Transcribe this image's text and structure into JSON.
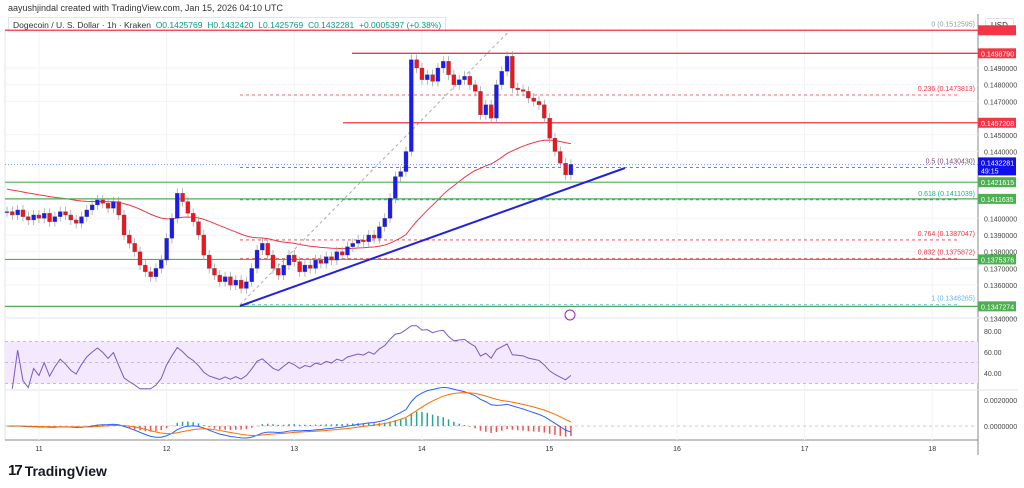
{
  "header": {
    "credit": "aayushjindal created with TradingView.com, Jan 15, 2026 04:10 UTC"
  },
  "legend": {
    "symbol": "Dogecoin / U. S. Dollar · 1h · Kraken",
    "open": "O0.1425769",
    "high": "H0.1432420",
    "low": "L0.1425769",
    "close": "C0.1432281",
    "change": "+0.0005397 (+0.38%)"
  },
  "currency": "USD",
  "colors": {
    "up": "#1b1bf0",
    "down": "#f0141e",
    "ma": "#f23645",
    "support": "#4caf50",
    "resistance": "#f23645",
    "trendline": "#2222dd",
    "rsi": "#7e57c2",
    "macd": "#2962ff",
    "signal": "#ff6d00"
  },
  "price_axis": {
    "ticks": [
      "0.1490000",
      "0.1480000",
      "0.1470000",
      "0.1450000",
      "0.1440000",
      "0.1400000",
      "0.1390000",
      "0.1380000",
      "0.1370000",
      "0.1360000",
      "0.1340000"
    ]
  },
  "price_labels": {
    "resistance": [
      "0.1498790",
      "0.1457208"
    ],
    "support": [
      "0.1421615",
      "0.1411635",
      "0.1375376",
      "0.1347274"
    ],
    "current": "0.1432281",
    "countdown": "49:15"
  },
  "fib": [
    {
      "label": "0 (0.1512595)",
      "v": 0.1512595,
      "c": "#9598a1"
    },
    {
      "label": "0.236 (0.1473813)",
      "v": 0.1473813,
      "c": "#f23645"
    },
    {
      "label": "0.5 (0.1430430)",
      "v": 0.143043,
      "c": "#7b4b6b"
    },
    {
      "label": "0.618 (0.1411039)",
      "v": 0.1411039,
      "c": "#22ab94"
    },
    {
      "label": "0.764 (0.1387047)",
      "v": 0.1387047,
      "c": "#f23645"
    },
    {
      "label": "0.832 (0.1375872)",
      "v": 0.1375872,
      "c": "#f23645"
    },
    {
      "label": "1 (0.1348265)",
      "v": 0.1348265,
      "c": "#5eb5e8"
    }
  ],
  "rsi_axis": {
    "ticks": [
      "80.00",
      "60.00",
      "40.00"
    ]
  },
  "macd_axis": {
    "ticks": [
      "0.0020000",
      "0.0000000"
    ]
  },
  "time_axis": {
    "ticks": [
      "11",
      "12",
      "13",
      "14",
      "15",
      "16",
      "17",
      "18"
    ]
  },
  "chart_data": {
    "type": "candlestick",
    "interval": "1h",
    "start": "Jan 10 18:00",
    "closes": [
      0.1404,
      0.1402,
      0.1405,
      0.1401,
      0.1399,
      0.1402,
      0.14,
      0.1403,
      0.1398,
      0.1401,
      0.1404,
      0.1402,
      0.1399,
      0.1397,
      0.1401,
      0.1405,
      0.1408,
      0.1411,
      0.1409,
      0.1406,
      0.141,
      0.1402,
      0.139,
      0.1385,
      0.138,
      0.1372,
      0.1368,
      0.1365,
      0.137,
      0.1375,
      0.1388,
      0.14,
      0.1415,
      0.141,
      0.1403,
      0.1398,
      0.139,
      0.1378,
      0.137,
      0.1366,
      0.1362,
      0.1365,
      0.136,
      0.1363,
      0.1358,
      0.1362,
      0.137,
      0.1381,
      0.1385,
      0.1378,
      0.137,
      0.1366,
      0.1372,
      0.1378,
      0.1374,
      0.1368,
      0.1372,
      0.137,
      0.1375,
      0.1373,
      0.1377,
      0.1375,
      0.138,
      0.1378,
      0.1383,
      0.1385,
      0.1387,
      0.1386,
      0.139,
      0.1388,
      0.1395,
      0.14,
      0.1412,
      0.1425,
      0.1428,
      0.144,
      0.1495,
      0.149,
      0.1483,
      0.1486,
      0.1482,
      0.149,
      0.1494,
      0.1486,
      0.148,
      0.1483,
      0.1485,
      0.148,
      0.1476,
      0.1462,
      0.1468,
      0.146,
      0.148,
      0.1488,
      0.1497,
      0.1478,
      0.1477,
      0.1476,
      0.1472,
      0.147,
      0.1468,
      0.146,
      0.1448,
      0.144,
      0.1433,
      0.1426,
      0.1432281
    ]
  }
}
